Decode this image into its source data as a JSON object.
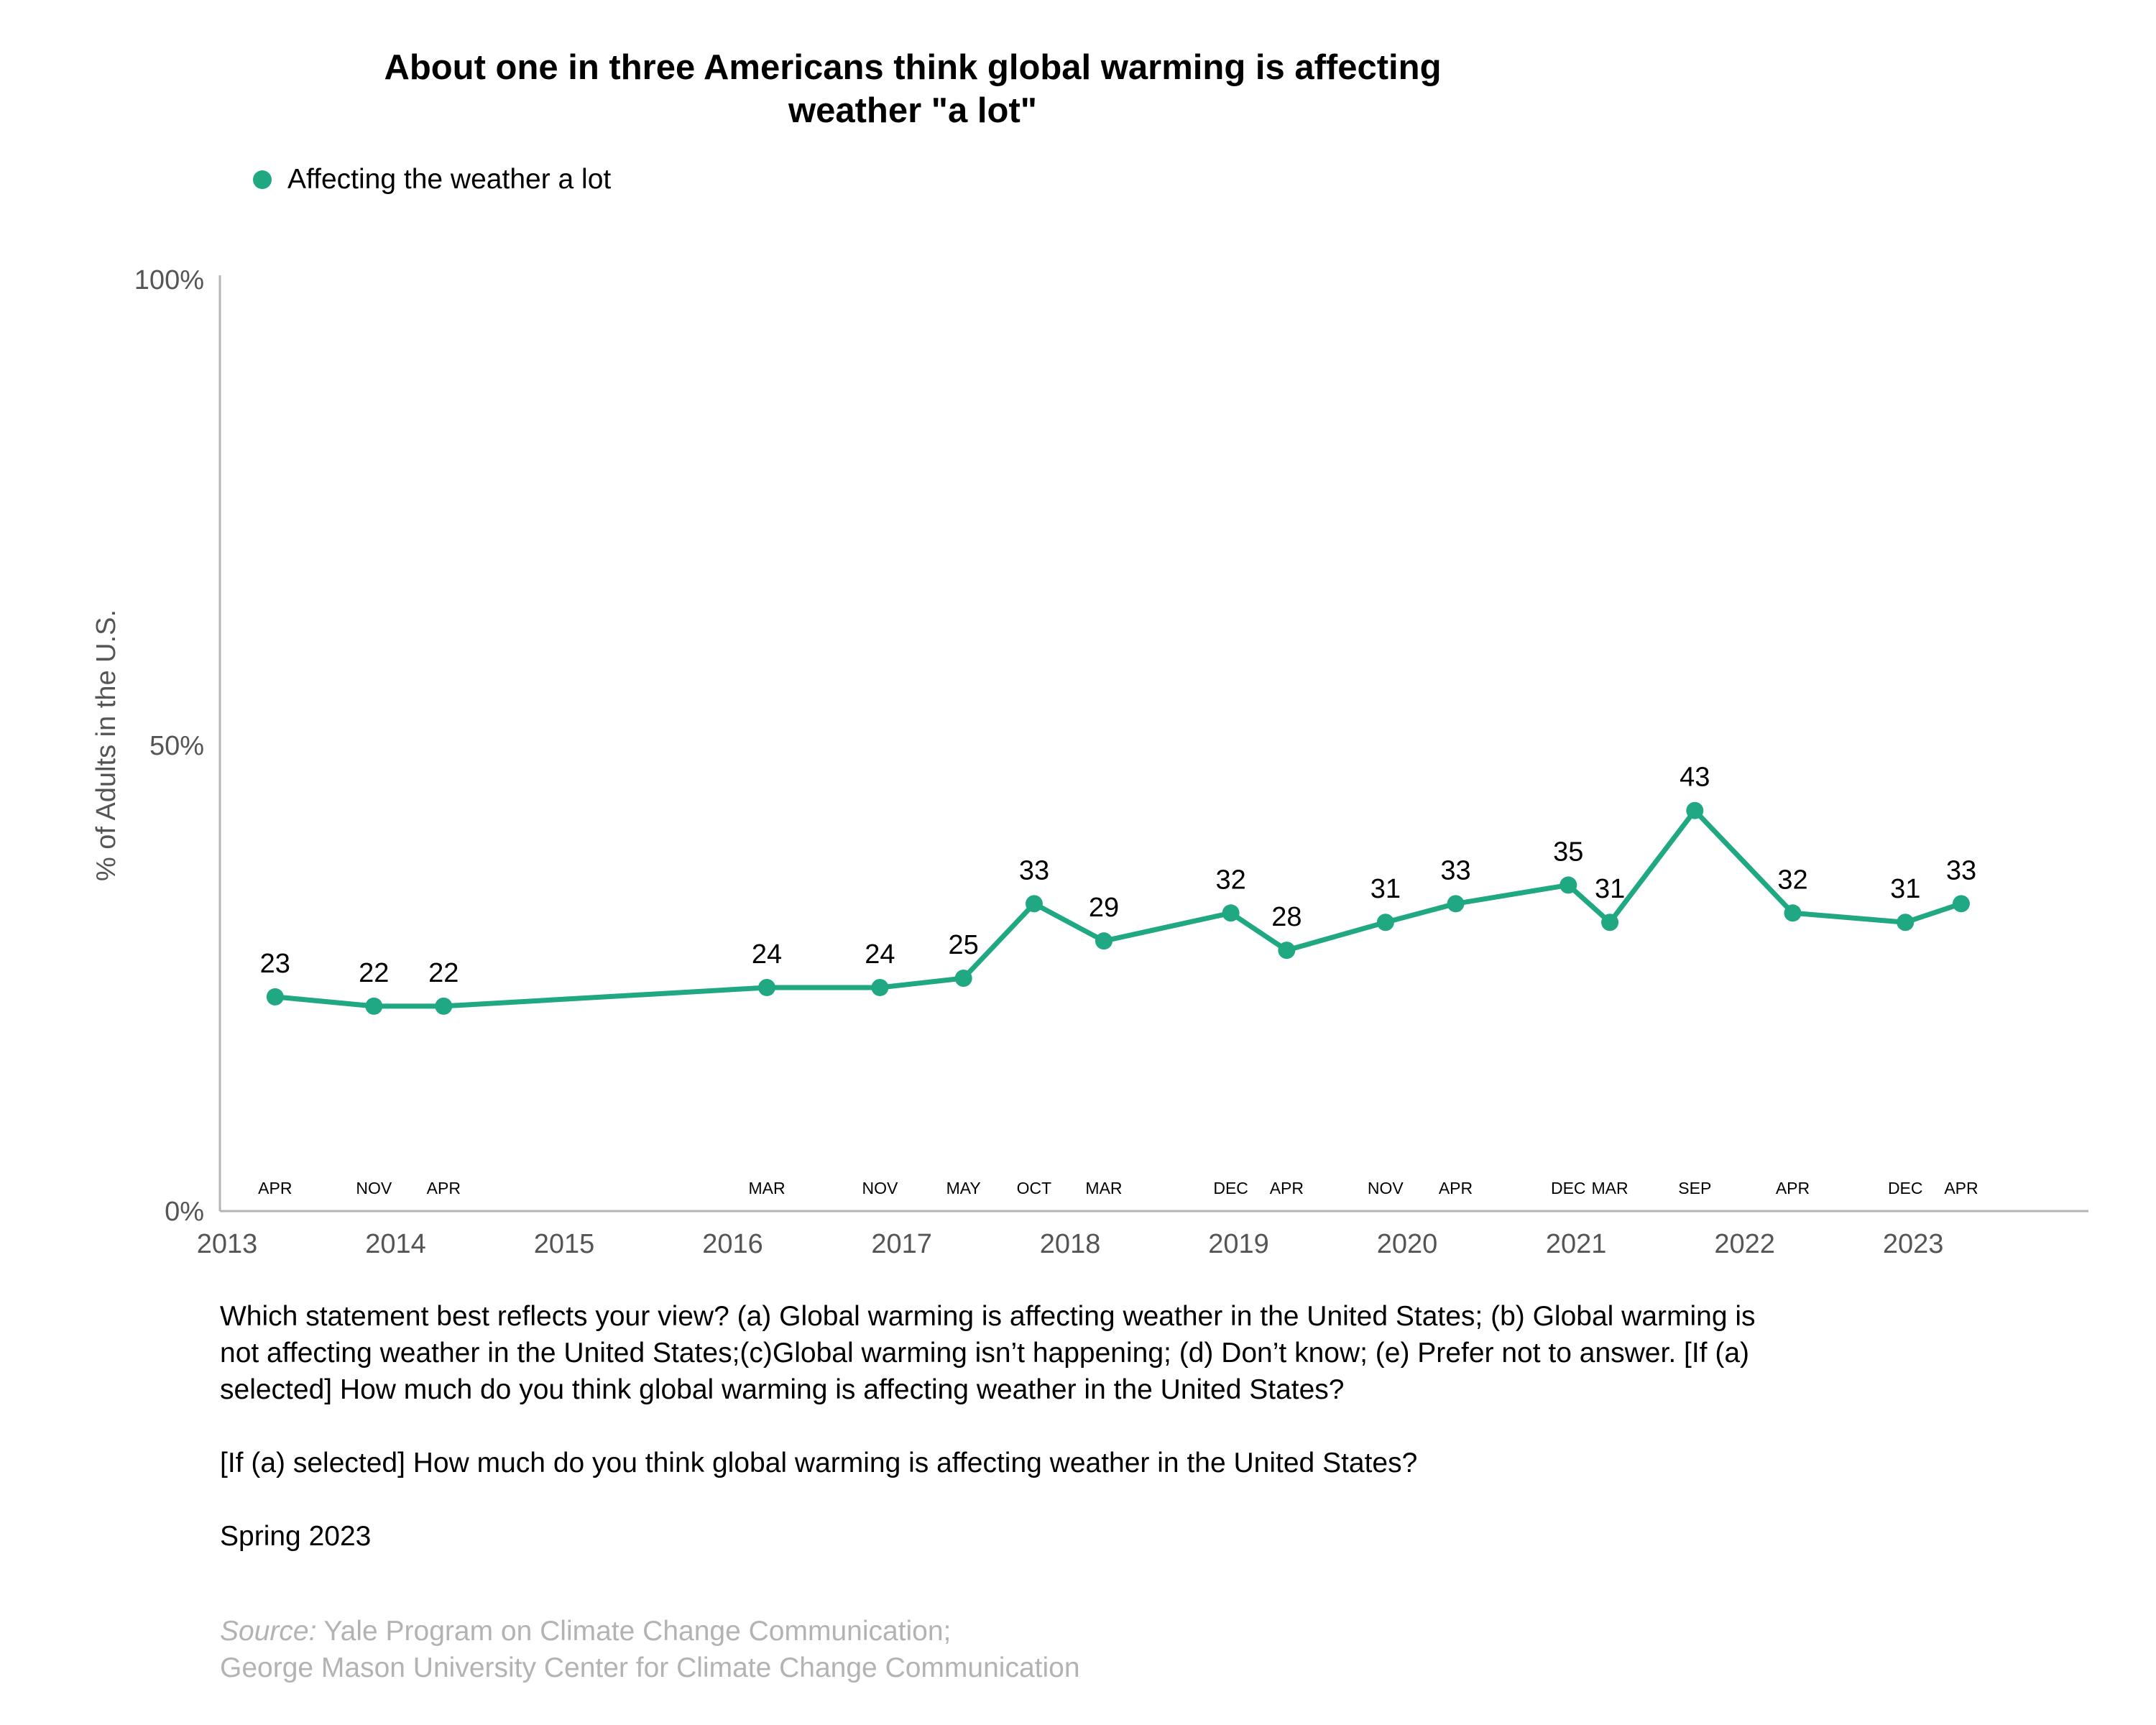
{
  "chart_data": {
    "type": "line",
    "title": [
      "About one in three Americans think global warming is affecting",
      "weather \"a lot\""
    ],
    "ylabel": "% of Adults in the U.S.",
    "ylim": [
      0,
      100
    ],
    "ytick_labels": [
      "0%",
      "50%",
      "100%"
    ],
    "yticks": [
      0,
      50,
      100
    ],
    "xlim": [
      "2013-01-01",
      "2023-12-31"
    ],
    "year_labels": [
      "2013",
      "2014",
      "2015",
      "2016",
      "2017",
      "2018",
      "2019",
      "2020",
      "2021",
      "2022",
      "2023"
    ],
    "legend": "top-left",
    "grid": false,
    "series": [
      {
        "name": "Affecting the weather a lot",
        "color": "#1fa882",
        "points": [
          {
            "date": "2013-04-15",
            "month": "APR",
            "value": 23
          },
          {
            "date": "2013-11-15",
            "month": "NOV",
            "value": 22
          },
          {
            "date": "2014-04-15",
            "month": "APR",
            "value": 22
          },
          {
            "date": "2016-03-15",
            "month": "MAR",
            "value": 24
          },
          {
            "date": "2016-11-15",
            "month": "NOV",
            "value": 24
          },
          {
            "date": "2017-05-15",
            "month": "MAY",
            "value": 25
          },
          {
            "date": "2017-10-15",
            "month": "OCT",
            "value": 33
          },
          {
            "date": "2018-03-15",
            "month": "MAR",
            "value": 29
          },
          {
            "date": "2018-12-15",
            "month": "DEC",
            "value": 32
          },
          {
            "date": "2019-04-15",
            "month": "APR",
            "value": 28
          },
          {
            "date": "2019-11-15",
            "month": "NOV",
            "value": 31
          },
          {
            "date": "2020-04-15",
            "month": "APR",
            "value": 33
          },
          {
            "date": "2020-12-15",
            "month": "DEC",
            "value": 35
          },
          {
            "date": "2021-03-15",
            "month": "MAR",
            "value": 31
          },
          {
            "date": "2021-09-15",
            "month": "SEP",
            "value": 43
          },
          {
            "date": "2022-04-15",
            "month": "APR",
            "value": 32
          },
          {
            "date": "2022-12-15",
            "month": "DEC",
            "value": 31
          },
          {
            "date": "2023-04-15",
            "month": "APR",
            "value": 33
          }
        ]
      }
    ]
  },
  "notes": [
    "Which statement best reflects your view? (a) Global warming is affecting weather in the United States; (b) Global warming is not affecting weather in the United States;(c)Global warming isn’t happening; (d) Don’t know; (e) Prefer not to answer. [If (a) selected] How much do you think global warming is affecting weather in the United States?",
    "[If (a) selected] How much do you think global warming is affecting weather in the United States?",
    "Spring 2023"
  ],
  "source": {
    "label": "Source:",
    "line1": " Yale Program on Climate Change Communication;",
    "line2": "George Mason University Center for Climate Change Communication"
  }
}
